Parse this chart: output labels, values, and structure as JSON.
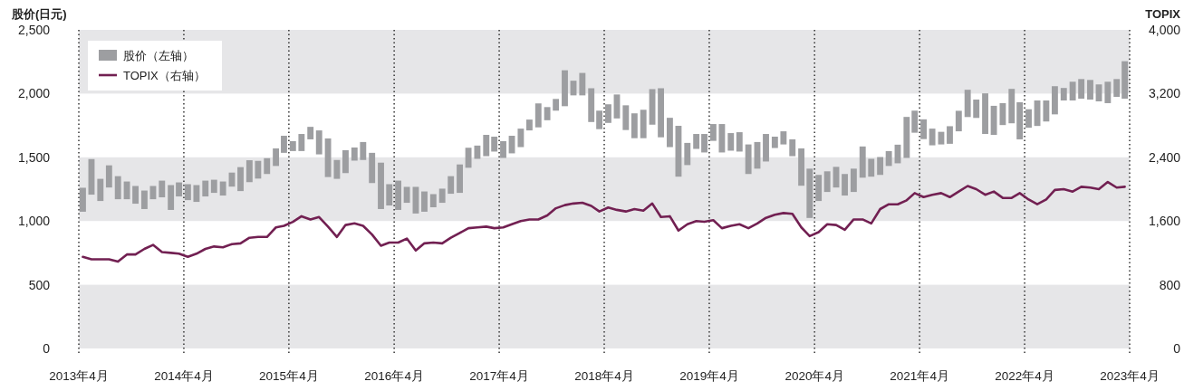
{
  "chart_data": {
    "type": "bar",
    "ylabel": "股价(日元)",
    "y2label": "TOPIX",
    "xlim": [
      "2013-04",
      "2023-04"
    ],
    "xticks": [
      {
        "value": "2013-04",
        "label": "2013年4月"
      },
      {
        "value": "2014-04",
        "label": "2014年4月"
      },
      {
        "value": "2015-04",
        "label": "2015年4月"
      },
      {
        "value": "2016-04",
        "label": "2016年4月"
      },
      {
        "value": "2017-04",
        "label": "2017年4月"
      },
      {
        "value": "2018-04",
        "label": "2018年4月"
      },
      {
        "value": "2019-04",
        "label": "2019年4月"
      },
      {
        "value": "2020-04",
        "label": "2020年4月"
      },
      {
        "value": "2021-04",
        "label": "2021年4月"
      },
      {
        "value": "2022-04",
        "label": "2022年4月"
      },
      {
        "value": "2023-04",
        "label": "2023年4月"
      }
    ],
    "ylim": [
      0,
      2500
    ],
    "yticks": [
      0,
      500,
      {
        "value": 1000,
        "label": "1,000"
      },
      {
        "value": 1500,
        "label": "1,500"
      },
      {
        "value": 2000,
        "label": "2,000"
      },
      {
        "value": 2500,
        "label": "2,500"
      }
    ],
    "y2lim": [
      0,
      4000
    ],
    "y2ticks": [
      0,
      800,
      {
        "value": 1600,
        "label": "1,600"
      },
      {
        "value": 2400,
        "label": "2,400"
      },
      {
        "value": 3200,
        "label": "3,200"
      },
      {
        "value": 4000,
        "label": "4,000"
      }
    ],
    "grid": "x",
    "legend": "top left",
    "bands": [
      {
        "axis": "y",
        "from": 0,
        "to": 500,
        "color": "#e6e6e8"
      },
      {
        "axis": "y",
        "from": 1000,
        "to": 1500,
        "color": "#e6e6e8"
      },
      {
        "axis": "y",
        "from": 2000,
        "to": 2500,
        "color": "#e6e6e8"
      }
    ],
    "x": [
      "2013-04-15",
      "2013-05-15",
      "2013-06-15",
      "2013-07-15",
      "2013-08-15",
      "2013-09-15",
      "2013-10-15",
      "2013-11-15",
      "2013-12-15",
      "2014-01-15",
      "2014-02-15",
      "2014-03-15",
      "2014-04-15",
      "2014-05-15",
      "2014-06-15",
      "2014-07-15",
      "2014-08-15",
      "2014-09-15",
      "2014-10-15",
      "2014-11-15",
      "2014-12-15",
      "2015-01-15",
      "2015-02-15",
      "2015-03-15",
      "2015-04-15",
      "2015-05-15",
      "2015-06-15",
      "2015-07-15",
      "2015-08-15",
      "2015-09-15",
      "2015-10-15",
      "2015-11-15",
      "2015-12-15",
      "2016-01-15",
      "2016-02-15",
      "2016-03-15",
      "2016-04-15",
      "2016-05-15",
      "2016-06-15",
      "2016-07-15",
      "2016-08-15",
      "2016-09-15",
      "2016-10-15",
      "2016-11-15",
      "2016-12-15",
      "2017-01-15",
      "2017-02-15",
      "2017-03-15",
      "2017-04-15",
      "2017-05-15",
      "2017-06-15",
      "2017-07-15",
      "2017-08-15",
      "2017-09-15",
      "2017-10-15",
      "2017-11-15",
      "2017-12-15",
      "2018-01-15",
      "2018-02-15",
      "2018-03-15",
      "2018-04-15",
      "2018-05-15",
      "2018-06-15",
      "2018-07-15",
      "2018-08-15",
      "2018-09-15",
      "2018-10-15",
      "2018-11-15",
      "2018-12-15",
      "2019-01-15",
      "2019-02-15",
      "2019-03-15",
      "2019-04-15",
      "2019-05-15",
      "2019-06-15",
      "2019-07-15",
      "2019-08-15",
      "2019-09-15",
      "2019-10-15",
      "2019-11-15",
      "2019-12-15",
      "2020-01-15",
      "2020-02-15",
      "2020-03-15",
      "2020-04-15",
      "2020-05-15",
      "2020-06-15",
      "2020-07-15",
      "2020-08-15",
      "2020-09-15",
      "2020-10-15",
      "2020-11-15",
      "2020-12-15",
      "2021-01-15",
      "2021-02-15",
      "2021-03-15",
      "2021-04-15",
      "2021-05-15",
      "2021-06-15",
      "2021-07-15",
      "2021-08-15",
      "2021-09-15",
      "2021-10-15",
      "2021-11-15",
      "2021-12-15",
      "2022-01-15",
      "2022-02-15",
      "2022-03-15",
      "2022-04-15",
      "2022-05-15",
      "2022-06-15",
      "2022-07-15",
      "2022-08-15",
      "2022-09-15",
      "2022-10-15",
      "2022-11-15",
      "2022-12-15",
      "2023-01-15",
      "2023-02-15",
      "2023-03-15"
    ],
    "series": [
      {
        "name": "股价（左轴）",
        "color": "#9d9ea1",
        "base": [
          1073,
          1207,
          1157,
          1263,
          1171,
          1171,
          1136,
          1094,
          1171,
          1186,
          1087,
          1193,
          1164,
          1150,
          1193,
          1221,
          1200,
          1270,
          1235,
          1305,
          1333,
          1369,
          1432,
          1535,
          1549,
          1549,
          1641,
          1523,
          1345,
          1331,
          1376,
          1474,
          1479,
          1298,
          1094,
          1122,
          1087,
          1143,
          1059,
          1073,
          1108,
          1143,
          1214,
          1221,
          1418,
          1488,
          1509,
          1545,
          1495,
          1531,
          1580,
          1711,
          1735,
          1791,
          1866,
          1901,
          1986,
          1986,
          1777,
          1721,
          1770,
          1805,
          1714,
          1650,
          1650,
          1756,
          1657,
          1580,
          1348,
          1439,
          1566,
          1538,
          1629,
          1538,
          1552,
          1545,
          1369,
          1411,
          1467,
          1573,
          1601,
          1509,
          1277,
          1024,
          1157,
          1228,
          1263,
          1200,
          1228,
          1340,
          1348,
          1362,
          1432,
          1453,
          1495,
          1693,
          1643,
          1594,
          1601,
          1606,
          1704,
          1816,
          1809,
          1683,
          1676,
          1753,
          1767,
          1641,
          1732,
          1746,
          1781,
          1837,
          1946,
          1946,
          1960,
          1953,
          1939,
          1925,
          1974,
          1960
        ],
        "values": [
          188,
          279,
          174,
          174,
          181,
          139,
          139,
          145,
          104,
          131,
          195,
          110,
          125,
          132,
          124,
          103,
          110,
          110,
          188,
          172,
          139,
          124,
          138,
          134,
          78,
          134,
          98,
          188,
          303,
          148,
          180,
          103,
          141,
          237,
          364,
          167,
          230,
          125,
          209,
          159,
          103,
          111,
          138,
          223,
          157,
          104,
          167,
          117,
          132,
          138,
          145,
          85,
          188,
          103,
          92,
          282,
          115,
          176,
          265,
          145,
          146,
          188,
          194,
          195,
          223,
          279,
          385,
          230,
          399,
          174,
          117,
          145,
          132,
          223,
          138,
          152,
          232,
          209,
          216,
          89,
          103,
          132,
          293,
          387,
          205,
          162,
          162,
          169,
          183,
          245,
          140,
          140,
          117,
          146,
          322,
          173,
          155,
          131,
          99,
          138,
          161,
          214,
          144,
          319,
          228,
          172,
          270,
          291,
          145,
          200,
          165,
          221,
          98,
          147,
          154,
          154,
          133,
          168,
          140,
          294
        ]
      },
      {
        "name": "TOPIX（右轴）",
        "type": "line",
        "axis": "y2",
        "color": "#722052",
        "values": [
          1150,
          1120,
          1120,
          1120,
          1090,
          1180,
          1180,
          1250,
          1300,
          1210,
          1200,
          1190,
          1150,
          1190,
          1250,
          1280,
          1270,
          1310,
          1320,
          1390,
          1400,
          1400,
          1520,
          1540,
          1590,
          1660,
          1620,
          1650,
          1530,
          1400,
          1550,
          1570,
          1540,
          1430,
          1290,
          1330,
          1330,
          1380,
          1230,
          1320,
          1330,
          1320,
          1390,
          1450,
          1510,
          1520,
          1530,
          1510,
          1520,
          1560,
          1600,
          1620,
          1620,
          1670,
          1760,
          1800,
          1820,
          1830,
          1790,
          1720,
          1770,
          1740,
          1720,
          1750,
          1730,
          1820,
          1650,
          1660,
          1480,
          1560,
          1600,
          1590,
          1610,
          1510,
          1540,
          1560,
          1510,
          1570,
          1640,
          1680,
          1700,
          1690,
          1520,
          1410,
          1460,
          1560,
          1550,
          1490,
          1620,
          1620,
          1570,
          1750,
          1810,
          1810,
          1860,
          1950,
          1900,
          1930,
          1950,
          1900,
          1970,
          2040,
          2000,
          1930,
          1970,
          1890,
          1890,
          1950,
          1870,
          1810,
          1870,
          1990,
          2000,
          1970,
          2030,
          2020,
          2000,
          2090,
          2020,
          2030
        ]
      }
    ]
  }
}
